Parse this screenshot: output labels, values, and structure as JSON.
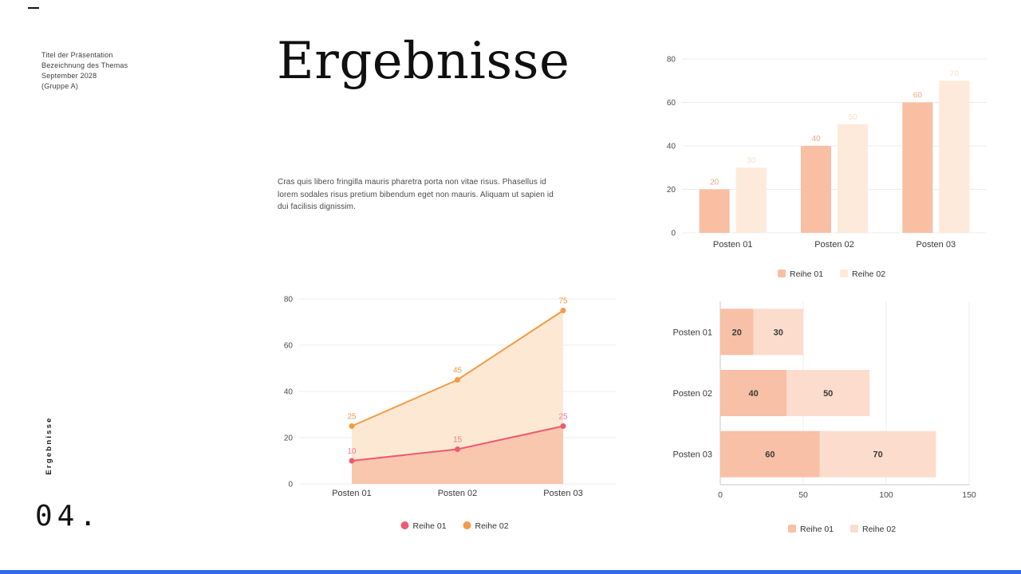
{
  "slide": {
    "meta_lines": [
      "Titel der Präsentation",
      "Bezeichnung des Themas",
      "September 2028",
      "(Gruppe A)"
    ],
    "title": "Ergebnisse",
    "body_text": "Cras quis libero fringilla mauris pharetra porta non vitae risus. Phasellus id lorem sodales risus pretium bibendum eget non mauris. Aliquam ut sapien id dui facilisis dignissim.",
    "side_label": "Ergebnisse",
    "page_number": "04."
  },
  "colors": {
    "accent_blue": "#2e6ce4",
    "peach_dark": "#f8bfa3",
    "peach_light": "#fdeadb",
    "line_pink": "#ee5a71",
    "line_orange": "#f39b48"
  },
  "chart_data": [
    {
      "id": "grouped-bar",
      "type": "bar",
      "categories": [
        "Posten 01",
        "Posten 02",
        "Posten 03"
      ],
      "series": [
        {
          "name": "Reihe 01",
          "values": [
            20,
            40,
            60
          ],
          "color": "#f8bfa3",
          "label_color": "#f0ab85"
        },
        {
          "name": "Reihe 02",
          "values": [
            30,
            50,
            70
          ],
          "color": "#fdeadb",
          "label_color": "#fbdfc6"
        }
      ],
      "ylim": [
        0,
        80
      ],
      "yticks": [
        0,
        20,
        40,
        60,
        80
      ],
      "grid": true,
      "legend_position": "bottom"
    },
    {
      "id": "line-area",
      "type": "area",
      "categories": [
        "Posten 01",
        "Posten 02",
        "Posten 03"
      ],
      "series": [
        {
          "name": "Reihe 01",
          "values": [
            10,
            15,
            25
          ],
          "color": "#ee5a71",
          "fill": "#f9c6ae",
          "label_color": "#f2788c"
        },
        {
          "name": "Reihe 02",
          "values": [
            25,
            45,
            75
          ],
          "color": "#f39b48",
          "fill": "#fde9d3",
          "label_color": "#f39b48"
        }
      ],
      "ylim": [
        0,
        80
      ],
      "yticks": [
        0,
        20,
        40,
        60,
        80
      ],
      "grid": true,
      "legend_position": "bottom"
    },
    {
      "id": "stacked-bar",
      "type": "bar-horizontal-stacked",
      "categories": [
        "Posten 01",
        "Posten 02",
        "Posten 03"
      ],
      "series": [
        {
          "name": "Reihe 01",
          "values": [
            20,
            40,
            60
          ],
          "color": "#f8c0a6"
        },
        {
          "name": "Reihe 02",
          "values": [
            30,
            50,
            70
          ],
          "color": "#fcdccc"
        }
      ],
      "xlim": [
        0,
        150
      ],
      "xticks": [
        0,
        50,
        100,
        150
      ],
      "grid": true,
      "value_labels": true,
      "legend_position": "bottom"
    }
  ]
}
